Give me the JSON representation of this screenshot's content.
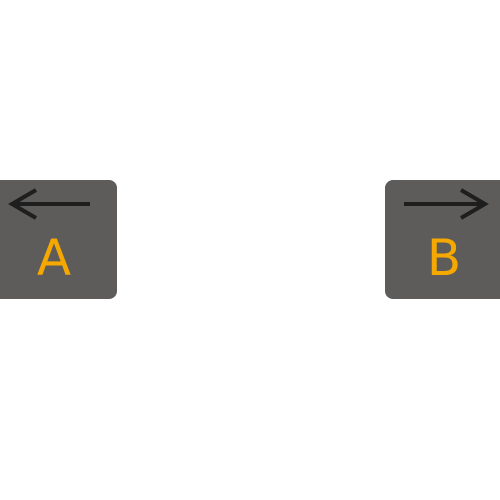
{
  "keys": [
    {
      "id": "A",
      "letter": "A",
      "icon": "arrow-left-icon"
    },
    {
      "id": "B",
      "letter": "B",
      "icon": "arrow-right-icon"
    }
  ],
  "colors": {
    "background": "#ffffff",
    "key_fill": "#5e5b5b",
    "letter": "#f5a900",
    "arrow": "#1e1e1e"
  }
}
